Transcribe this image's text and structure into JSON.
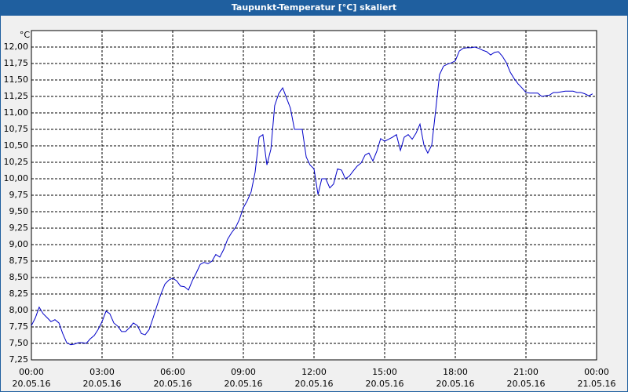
{
  "chart_data": {
    "type": "line",
    "title": "Taupunkt-Temperatur [°C] skaliert",
    "y_unit": "°C",
    "x": [
      0,
      0.17,
      0.33,
      0.5,
      0.67,
      0.83,
      1,
      1.17,
      1.33,
      1.5,
      1.67,
      1.83,
      2,
      2.17,
      2.33,
      2.5,
      2.67,
      2.83,
      3,
      3.17,
      3.33,
      3.5,
      3.67,
      3.83,
      4,
      4.17,
      4.33,
      4.5,
      4.67,
      4.83,
      5,
      5.17,
      5.33,
      5.5,
      5.67,
      5.83,
      6,
      6.17,
      6.33,
      6.5,
      6.67,
      6.83,
      7,
      7.17,
      7.33,
      7.5,
      7.67,
      7.83,
      8,
      8.17,
      8.33,
      8.5,
      8.67,
      8.83,
      9,
      9.17,
      9.33,
      9.5,
      9.67,
      9.83,
      10,
      10.17,
      10.33,
      10.5,
      10.67,
      10.83,
      11,
      11.17,
      11.33,
      11.5,
      11.67,
      11.83,
      12,
      12.17,
      12.33,
      12.5,
      12.67,
      12.83,
      13,
      13.17,
      13.33,
      13.5,
      13.67,
      13.83,
      14,
      14.17,
      14.33,
      14.5,
      14.67,
      14.83,
      15,
      15.17,
      15.33,
      15.5,
      15.67,
      15.83,
      16,
      16.17,
      16.33,
      16.5,
      16.67,
      16.83,
      17,
      17.17,
      17.33,
      17.5,
      17.67,
      17.83,
      18,
      18.17,
      18.33,
      18.5,
      18.67,
      18.83,
      19,
      19.17,
      19.33,
      19.5,
      19.67,
      19.83,
      20,
      20.17,
      20.33,
      20.5,
      20.67,
      20.83,
      21,
      21.17,
      21.33,
      21.5,
      21.67,
      21.83,
      22,
      22.17,
      22.33,
      22.5,
      22.67,
      22.83,
      23,
      23.17,
      23.33,
      23.5,
      23.67,
      23.83
    ],
    "series": [
      {
        "color": "#0000c8",
        "values": [
          7.77,
          7.89,
          8.05,
          7.95,
          7.89,
          7.83,
          7.86,
          7.81,
          7.65,
          7.51,
          7.48,
          7.49,
          7.51,
          7.51,
          7.5,
          7.57,
          7.62,
          7.71,
          7.83,
          7.99,
          7.95,
          7.81,
          7.76,
          7.68,
          7.68,
          7.74,
          7.81,
          7.77,
          7.65,
          7.63,
          7.71,
          7.89,
          8.07,
          8.25,
          8.4,
          8.46,
          8.49,
          8.45,
          8.37,
          8.36,
          8.31,
          8.45,
          8.57,
          8.7,
          8.73,
          8.71,
          8.75,
          8.85,
          8.81,
          8.93,
          9.08,
          9.18,
          9.26,
          9.38,
          9.56,
          9.67,
          9.8,
          10.1,
          10.63,
          10.67,
          10.21,
          10.45,
          11.11,
          11.29,
          11.38,
          11.23,
          11.07,
          10.75,
          10.75,
          10.75,
          10.33,
          10.21,
          10.15,
          9.76,
          10.0,
          10.0,
          9.86,
          9.92,
          10.15,
          10.13,
          10.0,
          10.04,
          10.12,
          10.19,
          10.24,
          10.36,
          10.39,
          10.27,
          10.42,
          10.61,
          10.57,
          10.6,
          10.63,
          10.67,
          10.43,
          10.63,
          10.67,
          10.6,
          10.69,
          10.83,
          10.51,
          10.39,
          10.51,
          11.05,
          11.58,
          11.71,
          11.74,
          11.76,
          11.79,
          11.94,
          11.98,
          11.99,
          11.99,
          12.0,
          11.98,
          11.95,
          11.93,
          11.88,
          11.92,
          11.93,
          11.86,
          11.76,
          11.62,
          11.52,
          11.44,
          11.38,
          11.31,
          11.3,
          11.3,
          11.3,
          11.25,
          11.26,
          11.27,
          11.31,
          11.31,
          11.32,
          11.33,
          11.33,
          11.33,
          11.31,
          11.31,
          11.29,
          11.26,
          11.29
        ]
      }
    ],
    "xlim": [
      0,
      24
    ],
    "xticks": [
      {
        "value": 0,
        "label": "00:00",
        "sublabel": "20.05.16"
      },
      {
        "value": 3,
        "label": "03:00",
        "sublabel": "20.05.16"
      },
      {
        "value": 6,
        "label": "06:00",
        "sublabel": "20.05.16"
      },
      {
        "value": 9,
        "label": "09:00",
        "sublabel": "20.05.16"
      },
      {
        "value": 12,
        "label": "12:00",
        "sublabel": "20.05.16"
      },
      {
        "value": 15,
        "label": "15:00",
        "sublabel": "20.05.16"
      },
      {
        "value": 18,
        "label": "18:00",
        "sublabel": "20.05.16"
      },
      {
        "value": 21,
        "label": "21:00",
        "sublabel": "20.05.16"
      },
      {
        "value": 24,
        "label": "00:00",
        "sublabel": "21.05.16"
      }
    ],
    "ylim": [
      7.25,
      12.25
    ],
    "yticks": [
      {
        "value": 7.25,
        "label": "7,25"
      },
      {
        "value": 7.5,
        "label": "7,50"
      },
      {
        "value": 7.75,
        "label": "7,75"
      },
      {
        "value": 8,
        "label": "8,00"
      },
      {
        "value": 8.25,
        "label": "8,25"
      },
      {
        "value": 8.5,
        "label": "8,50"
      },
      {
        "value": 8.75,
        "label": "8,75"
      },
      {
        "value": 9,
        "label": "9,00"
      },
      {
        "value": 9.25,
        "label": "9,25"
      },
      {
        "value": 9.5,
        "label": "9,50"
      },
      {
        "value": 9.75,
        "label": "9,75"
      },
      {
        "value": 10,
        "label": "10,00"
      },
      {
        "value": 10.25,
        "label": "10,25"
      },
      {
        "value": 10.5,
        "label": "10,50"
      },
      {
        "value": 10.75,
        "label": "10,75"
      },
      {
        "value": 11,
        "label": "11,00"
      },
      {
        "value": 11.25,
        "label": "11,25"
      },
      {
        "value": 11.5,
        "label": "11,50"
      },
      {
        "value": 11.75,
        "label": "11,75"
      },
      {
        "value": 12,
        "label": "12,00"
      }
    ],
    "grid": true
  }
}
